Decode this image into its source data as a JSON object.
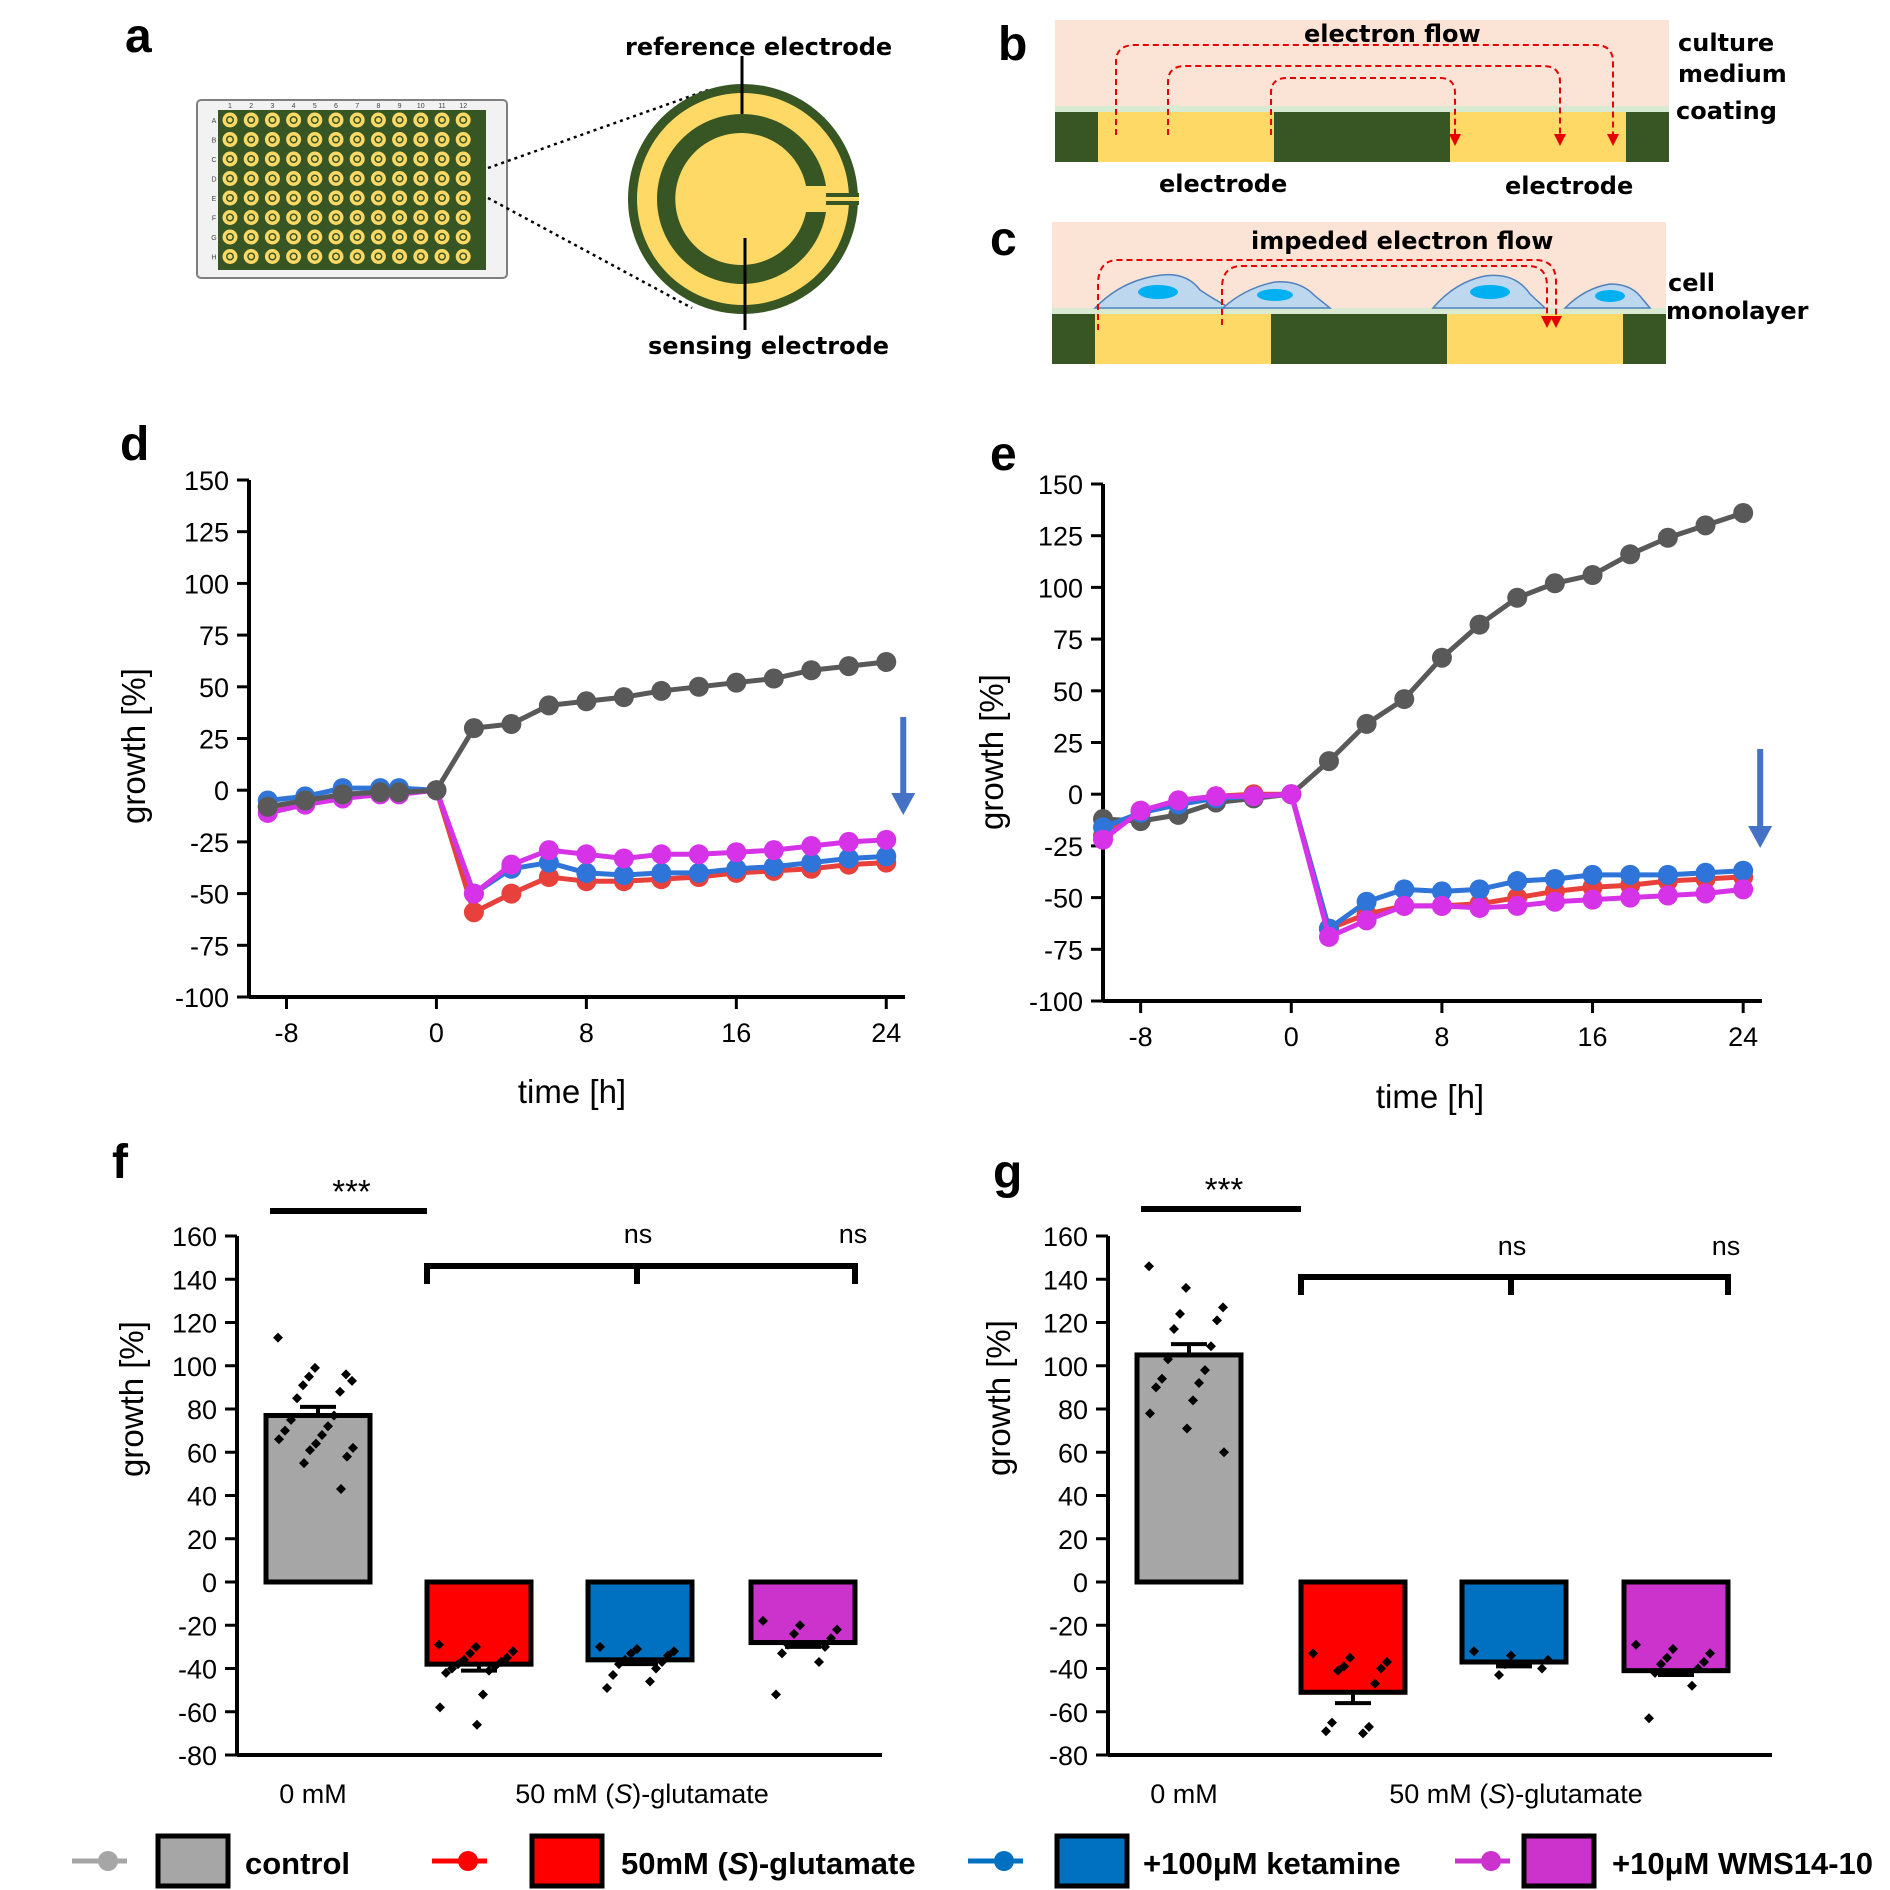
{
  "panels": {
    "a": "a",
    "b": "b",
    "c": "c",
    "d": "d",
    "e": "e",
    "f": "f",
    "g": "g"
  },
  "schematic": {
    "reference_electrode": "reference electrode",
    "sensing_electrode": "sensing electrode",
    "plate_columns": [
      "1",
      "2",
      "3",
      "4",
      "5",
      "6",
      "7",
      "8",
      "9",
      "10",
      "11",
      "12"
    ],
    "plate_rows": [
      "A",
      "B",
      "C",
      "D",
      "E",
      "F",
      "G",
      "H"
    ],
    "electron_flow": "electron flow",
    "culture_medium_1": "culture",
    "culture_medium_2": "medium",
    "coating": "coating",
    "electrode_left": "electrode",
    "electrode_right": "electrode",
    "impeded_flow": "impeded electron flow",
    "cell_1": "cell",
    "cell_2": "monolayer",
    "colors": {
      "gold": "#ffd966",
      "green": "#375623",
      "medium": "#fbe3d6",
      "cell": "#bdd7ee",
      "nucleus": "#00b0f0",
      "flow": "#e60000"
    }
  },
  "colors": {
    "control": "#595959",
    "glutamate": "#e8413c",
    "ketamine": "#2f74d8",
    "wms": "#d633e8",
    "arrow": "#4472c4"
  },
  "chart_data": [
    {
      "panel": "d",
      "type": "line",
      "xlabel": "time [h]",
      "ylabel": "growth [%]",
      "xlim": [
        -10,
        25
      ],
      "ylim": [
        -100,
        150
      ],
      "xticks": [
        -8,
        0,
        8,
        16,
        24
      ],
      "yticks": [
        150,
        125,
        100,
        75,
        50,
        25,
        0,
        -25,
        -50,
        -75,
        -100
      ],
      "arrow_at_x": 24,
      "series": [
        {
          "key": "glutamate",
          "x": [
            -9,
            -7,
            -5,
            -3,
            -2,
            0,
            2,
            4,
            6,
            8,
            10,
            12,
            14,
            16,
            18,
            20,
            22,
            24
          ],
          "y": [
            -8,
            -6,
            -2,
            -1,
            -1,
            0,
            -59,
            -50,
            -42,
            -44,
            -44,
            -43,
            -42,
            -40,
            -39,
            -38,
            -36,
            -35
          ]
        },
        {
          "key": "ketamine",
          "x": [
            -9,
            -7,
            -5,
            -3,
            -2,
            0,
            2,
            4,
            6,
            8,
            10,
            12,
            14,
            16,
            18,
            20,
            22,
            24
          ],
          "y": [
            -5,
            -3,
            1,
            1,
            1,
            0,
            -50,
            -38,
            -35,
            -40,
            -41,
            -40,
            -40,
            -38,
            -37,
            -35,
            -33,
            -32
          ]
        },
        {
          "key": "wms",
          "x": [
            -9,
            -7,
            -5,
            -3,
            -2,
            0,
            2,
            4,
            6,
            8,
            10,
            12,
            14,
            16,
            18,
            20,
            22,
            24
          ],
          "y": [
            -11,
            -7,
            -4,
            -2,
            -2,
            0,
            -50,
            -36,
            -29,
            -31,
            -33,
            -31,
            -31,
            -30,
            -29,
            -27,
            -25,
            -24
          ]
        },
        {
          "key": "control",
          "x": [
            -9,
            -7,
            -5,
            -3,
            -2,
            0,
            2,
            4,
            6,
            8,
            10,
            12,
            14,
            16,
            18,
            20,
            22,
            24
          ],
          "y": [
            -8,
            -5,
            -2,
            -1,
            -1,
            0,
            30,
            32,
            41,
            43,
            45,
            48,
            50,
            52,
            54,
            58,
            60,
            62
          ]
        }
      ]
    },
    {
      "panel": "e",
      "type": "line",
      "xlabel": "time [h]",
      "ylabel": "growth [%]",
      "xlim": [
        -10,
        25
      ],
      "ylim": [
        -100,
        150
      ],
      "xticks": [
        -8,
        0,
        8,
        16,
        24
      ],
      "yticks": [
        150,
        125,
        100,
        75,
        50,
        25,
        0,
        -25,
        -50,
        -75,
        -100
      ],
      "arrow_at_x": 24,
      "series": [
        {
          "key": "control",
          "x": [
            -10,
            -8,
            -6,
            -4,
            -2,
            0,
            2,
            4,
            6,
            8,
            10,
            12,
            14,
            16,
            18,
            20,
            22,
            24
          ],
          "y": [
            -12,
            -13,
            -10,
            -4,
            -2,
            0,
            16,
            34,
            46,
            66,
            82,
            95,
            102,
            106,
            116,
            124,
            130,
            136
          ]
        },
        {
          "key": "glutamate",
          "x": [
            -10,
            -8,
            -6,
            -4,
            -2,
            0,
            2,
            4,
            6,
            8,
            10,
            12,
            14,
            16,
            18,
            20,
            22,
            24
          ],
          "y": [
            -20,
            -8,
            -3,
            -1,
            0,
            0,
            -65,
            -58,
            -54,
            -54,
            -53,
            -50,
            -47,
            -45,
            -44,
            -42,
            -41,
            -40
          ]
        },
        {
          "key": "ketamine",
          "x": [
            -10,
            -8,
            -6,
            -4,
            -2,
            0,
            2,
            4,
            6,
            8,
            10,
            12,
            14,
            16,
            18,
            20,
            22,
            24
          ],
          "y": [
            -16,
            -9,
            -5,
            -2,
            -1,
            0,
            -65,
            -52,
            -46,
            -47,
            -46,
            -42,
            -41,
            -39,
            -39,
            -39,
            -38,
            -37
          ]
        },
        {
          "key": "wms",
          "x": [
            -10,
            -8,
            -6,
            -4,
            -2,
            0,
            2,
            4,
            6,
            8,
            10,
            12,
            14,
            16,
            18,
            20,
            22,
            24
          ],
          "y": [
            -22,
            -8,
            -3,
            -1,
            -1,
            0,
            -69,
            -61,
            -54,
            -54,
            -55,
            -54,
            -52,
            -51,
            -50,
            -49,
            -48,
            -46
          ]
        }
      ]
    },
    {
      "panel": "f",
      "type": "bar",
      "ylabel": "growth [%]",
      "ylim": [
        -80,
        160
      ],
      "yticks": [
        160,
        140,
        120,
        100,
        80,
        60,
        40,
        20,
        0,
        -20,
        -40,
        -60,
        -80
      ],
      "group_labels": [
        "0 mM",
        "50 mM (",
        "S",
        ")-glutamate"
      ],
      "sig_main": "***",
      "sig_a": "ns",
      "sig_b": "ns",
      "bars": [
        {
          "key": "control",
          "value": 77,
          "err": 4,
          "points": [
            113,
            99,
            93,
            95,
            96,
            91,
            88,
            85,
            77,
            75,
            72,
            70,
            68,
            66,
            64,
            62,
            61,
            58,
            55,
            43
          ]
        },
        {
          "key": "glutamate",
          "value": -38,
          "err": 3,
          "points": [
            -29,
            -30,
            -32,
            -33,
            -35,
            -36,
            -37,
            -38,
            -39,
            -40,
            -41,
            -42,
            -52,
            -58,
            -66
          ]
        },
        {
          "key": "ketamine",
          "value": -36,
          "err": 2,
          "points": [
            -30,
            -31,
            -32,
            -33,
            -34,
            -36,
            -37,
            -38,
            -40,
            -43,
            -46,
            -49
          ]
        },
        {
          "key": "wms",
          "value": -28,
          "err": 2,
          "points": [
            -18,
            -20,
            -22,
            -24,
            -26,
            -29,
            -30,
            -33,
            -37,
            -52
          ]
        }
      ]
    },
    {
      "panel": "g",
      "type": "bar",
      "ylabel": "growth [%]",
      "ylim": [
        -80,
        160
      ],
      "yticks": [
        160,
        140,
        120,
        100,
        80,
        60,
        40,
        20,
        0,
        -20,
        -40,
        -60,
        -80
      ],
      "group_labels": [
        "0 mM",
        "50 mM (",
        "S",
        ")-glutamate"
      ],
      "sig_main": "***",
      "sig_a": "ns",
      "sig_b": "ns",
      "bars": [
        {
          "key": "control",
          "value": 105,
          "err": 5,
          "points": [
            146,
            136,
            127,
            124,
            121,
            117,
            109,
            103,
            98,
            94,
            92,
            90,
            84,
            78,
            71,
            60
          ]
        },
        {
          "key": "glutamate",
          "value": -51,
          "err": 5,
          "points": [
            -33,
            -35,
            -37,
            -39,
            -40,
            -41,
            -47,
            -65,
            -67,
            -69,
            -70
          ]
        },
        {
          "key": "ketamine",
          "value": -37,
          "err": 2,
          "points": [
            -32,
            -34,
            -36,
            -38,
            -40,
            -43
          ]
        },
        {
          "key": "wms",
          "value": -41,
          "err": 2,
          "points": [
            -29,
            -31,
            -33,
            -35,
            -37,
            -38,
            -40,
            -42,
            -48,
            -63
          ]
        }
      ]
    }
  ],
  "legend": [
    {
      "key": "control",
      "label": "control",
      "swatch": "#a6a6a6",
      "line": "#a6a6a6"
    },
    {
      "key": "glutamate",
      "label": "50mM (",
      "label_italic": "S",
      "label_tail": ")-glutamate",
      "swatch": "#ff0000",
      "line": "#ff0000"
    },
    {
      "key": "ketamine",
      "label": "+100μM ketamine",
      "swatch": "#0070c0",
      "line": "#0070c0"
    },
    {
      "key": "wms",
      "label": "+10μM WMS14-10",
      "swatch": "#cc33cc",
      "line": "#cc33cc"
    }
  ]
}
